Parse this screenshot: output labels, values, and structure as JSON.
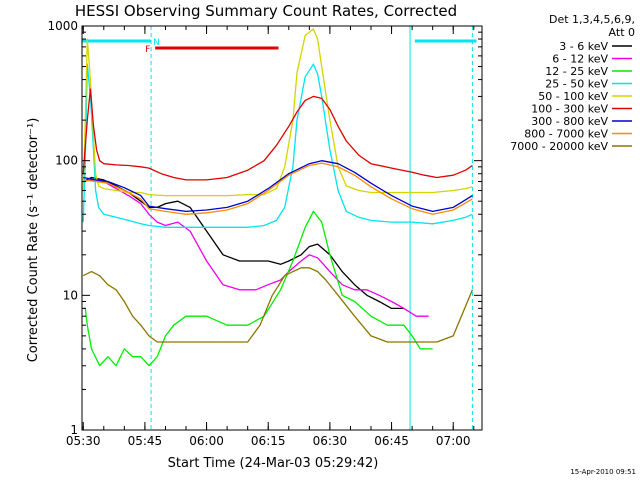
{
  "chart_data": {
    "type": "line",
    "title": "HESSI Observing Summary Count Rates, Corrected",
    "xlabel": "Start Time (24-Mar-03 05:29:42)",
    "ylabel": "Corrected Count Rate (s⁻¹ detector⁻¹)",
    "y_scale": "log",
    "ylim": [
      1,
      1000
    ],
    "xlim": [
      "05:29:42",
      "07:07:00"
    ],
    "x_ticks": [
      "05:30",
      "05:45",
      "06:00",
      "06:15",
      "06:30",
      "06:45",
      "07:00"
    ],
    "y_ticks": [
      "1",
      "10",
      "100",
      "1000"
    ],
    "legend_header": [
      "Det 1,3,4,5,6,9,",
      "Att 0"
    ],
    "legend_position": "top-right",
    "footer_date": "15-Apr-2010 09:51",
    "flags": [
      {
        "label": "N",
        "color": "#00e5ee",
        "spans": [
          [
            "05:29:42",
            "05:46:30"
          ],
          [
            "06:50:40",
            "07:05:40"
          ]
        ]
      },
      {
        "label": "F",
        "color": "#e00000",
        "spans": [
          [
            "05:47:30",
            "06:17:30"
          ]
        ]
      }
    ],
    "night_boundaries": [
      "05:46:30",
      "06:49:30",
      "07:04:40"
    ],
    "series": [
      {
        "name": "3 - 6 keV",
        "color": "#000000",
        "x": [
          "05:30",
          "05:32",
          "05:35",
          "05:38",
          "05:41",
          "05:44",
          "05:46",
          "05:48",
          "05:50",
          "05:53",
          "05:56",
          "06:00",
          "06:04",
          "06:08",
          "06:12",
          "06:15",
          "06:18",
          "06:20",
          "06:23",
          "06:25",
          "06:27",
          "06:30",
          "06:33",
          "06:36",
          "06:39",
          "06:42",
          "06:45",
          "06:48"
        ],
        "y": [
          70,
          75,
          72,
          65,
          58,
          50,
          45,
          45,
          48,
          50,
          45,
          30,
          20,
          18,
          18,
          18,
          17,
          18,
          20,
          23,
          24,
          20,
          15,
          12,
          10,
          9,
          8,
          8
        ]
      },
      {
        "name": "6 - 12 keV",
        "color": "#ee00ee",
        "x": [
          "05:30",
          "05:32",
          "05:35",
          "05:38",
          "05:41",
          "05:44",
          "05:46",
          "05:48",
          "05:50",
          "05:53",
          "05:56",
          "06:00",
          "06:04",
          "06:08",
          "06:12",
          "06:15",
          "06:18",
          "06:20",
          "06:23",
          "06:25",
          "06:27",
          "06:30",
          "06:33",
          "06:36",
          "06:39",
          "06:42",
          "06:45",
          "06:48",
          "06:51",
          "06:54"
        ],
        "y": [
          70,
          72,
          70,
          62,
          55,
          48,
          40,
          35,
          33,
          35,
          30,
          18,
          12,
          11,
          11,
          12,
          13,
          15,
          18,
          20,
          19,
          15,
          12,
          11,
          11,
          10,
          9,
          8,
          7,
          7
        ]
      },
      {
        "name": "12 - 25 keV",
        "color": "#00ee00",
        "x": [
          "05:30",
          "05:30:30",
          "05:31",
          "05:32",
          "05:34",
          "05:36",
          "05:38",
          "05:40",
          "05:42",
          "05:44",
          "05:46",
          "05:48",
          "05:50",
          "05:52",
          "05:55",
          "06:00",
          "06:05",
          "06:10",
          "06:14",
          "06:18",
          "06:21",
          "06:24",
          "06:26",
          "06:28",
          "06:30",
          "06:33",
          "06:36",
          "06:40",
          "06:44",
          "06:48",
          "06:50",
          "06:52",
          "06:54",
          "06:55"
        ],
        "y": [
          8,
          8,
          6,
          4,
          3,
          3.5,
          3,
          4,
          3.5,
          3.5,
          3,
          3.5,
          5,
          6,
          7,
          7,
          6,
          6,
          7,
          11,
          18,
          32,
          42,
          35,
          20,
          10,
          9,
          7,
          6,
          6,
          5,
          4,
          4,
          4
        ]
      },
      {
        "name": "25 - 50 keV",
        "color": "#00e5ee",
        "x": [
          "05:30",
          "05:30:30",
          "05:31",
          "05:31:45",
          "05:32:30",
          "05:33",
          "05:33:45",
          "05:35",
          "05:38",
          "05:41",
          "05:44",
          "05:46",
          "05:50",
          "05:55",
          "06:00",
          "06:05",
          "06:10",
          "06:14",
          "06:17",
          "06:19",
          "06:21",
          "06:22",
          "06:24",
          "06:26",
          "06:27",
          "06:28",
          "06:30",
          "06:32",
          "06:34",
          "06:37",
          "06:40",
          "06:45",
          "06:50",
          "06:55",
          "07:00",
          "07:03",
          "07:04:40"
        ],
        "y": [
          35,
          100,
          520,
          300,
          120,
          60,
          45,
          40,
          38,
          36,
          34,
          33,
          32,
          32,
          32,
          32,
          32,
          33,
          36,
          45,
          90,
          200,
          420,
          520,
          440,
          300,
          120,
          60,
          42,
          38,
          36,
          35,
          35,
          34,
          36,
          38,
          40
        ]
      },
      {
        "name": "50 - 100 keV",
        "color": "#d4d400",
        "x": [
          "05:30",
          "05:30:30",
          "05:31",
          "05:31:45",
          "05:32:30",
          "05:33",
          "05:33:45",
          "05:35",
          "05:38",
          "05:41",
          "05:44",
          "05:46",
          "05:50",
          "05:55",
          "06:00",
          "06:05",
          "06:10",
          "06:14",
          "06:17",
          "06:19",
          "06:21",
          "06:22",
          "06:24",
          "06:26",
          "06:27",
          "06:28",
          "06:30",
          "06:32",
          "06:34",
          "06:37",
          "06:40",
          "06:45",
          "06:50",
          "06:55",
          "07:00",
          "07:03",
          "07:04:40"
        ],
        "y": [
          60,
          200,
          800,
          400,
          150,
          80,
          65,
          62,
          60,
          58,
          58,
          56,
          55,
          55,
          55,
          55,
          56,
          56,
          62,
          90,
          200,
          450,
          850,
          950,
          800,
          500,
          200,
          90,
          65,
          60,
          58,
          58,
          58,
          58,
          60,
          62,
          64
        ]
      },
      {
        "name": "100 - 300 keV",
        "color": "#e00000",
        "x": [
          "05:30",
          "05:31",
          "05:31:45",
          "05:32:30",
          "05:33:15",
          "05:34",
          "05:35",
          "05:38",
          "05:41",
          "05:44",
          "05:46",
          "05:49",
          "05:52",
          "05:55",
          "06:00",
          "06:05",
          "06:10",
          "06:14",
          "06:17",
          "06:20",
          "06:22",
          "06:24",
          "06:26",
          "06:28",
          "06:30",
          "06:32",
          "06:34",
          "06:37",
          "06:40",
          "06:45",
          "06:50",
          "06:53",
          "06:56",
          "07:00",
          "07:03",
          "07:04:40"
        ],
        "y": [
          80,
          200,
          340,
          180,
          120,
          100,
          95,
          93,
          92,
          90,
          88,
          80,
          75,
          72,
          72,
          75,
          85,
          100,
          130,
          180,
          230,
          280,
          300,
          290,
          240,
          180,
          140,
          110,
          95,
          88,
          82,
          78,
          75,
          78,
          85,
          92
        ]
      },
      {
        "name": "300 - 800 keV",
        "color": "#0000cc",
        "x": [
          "05:30",
          "05:33",
          "05:36",
          "05:40",
          "05:44",
          "05:46",
          "05:50",
          "05:55",
          "06:00",
          "06:05",
          "06:10",
          "06:15",
          "06:20",
          "06:25",
          "06:28",
          "06:32",
          "06:36",
          "06:40",
          "06:45",
          "06:50",
          "06:55",
          "07:00",
          "07:04:40"
        ],
        "y": [
          75,
          72,
          70,
          63,
          55,
          46,
          44,
          42,
          43,
          45,
          50,
          62,
          80,
          95,
          100,
          95,
          82,
          68,
          55,
          46,
          42,
          45,
          55
        ]
      },
      {
        "name": "800 - 7000 keV",
        "color": "#ff8c00",
        "x": [
          "05:30",
          "05:33",
          "05:36",
          "05:40",
          "05:44",
          "05:46",
          "05:50",
          "05:55",
          "06:00",
          "06:05",
          "06:10",
          "06:15",
          "06:20",
          "06:25",
          "06:28",
          "06:32",
          "06:36",
          "06:40",
          "06:45",
          "06:50",
          "06:55",
          "07:00",
          "07:04:40"
        ],
        "y": [
          72,
          70,
          68,
          60,
          52,
          44,
          42,
          40,
          41,
          43,
          48,
          60,
          78,
          92,
          96,
          90,
          78,
          64,
          52,
          44,
          40,
          43,
          52
        ]
      },
      {
        "name": "7000 - 20000 keV",
        "color": "#8b7500",
        "x": [
          "05:30",
          "05:32",
          "05:34",
          "05:36",
          "05:38",
          "05:40",
          "05:42",
          "05:44",
          "05:46",
          "05:48",
          "05:52",
          "05:56",
          "06:00",
          "06:05",
          "06:10",
          "06:13",
          "06:16",
          "06:19",
          "06:21",
          "06:23",
          "06:25",
          "06:27",
          "06:29",
          "06:32",
          "06:36",
          "06:40",
          "06:44",
          "06:48",
          "06:52",
          "06:56",
          "07:00",
          "07:02",
          "07:04:40"
        ],
        "y": [
          14,
          15,
          14,
          12,
          11,
          9,
          7,
          6,
          5,
          4.5,
          4.5,
          4.5,
          4.5,
          4.5,
          4.5,
          6,
          10,
          14,
          15,
          16,
          16,
          15,
          13,
          10,
          7,
          5,
          4.5,
          4.5,
          4.5,
          4.5,
          5,
          7,
          11
        ]
      }
    ]
  }
}
